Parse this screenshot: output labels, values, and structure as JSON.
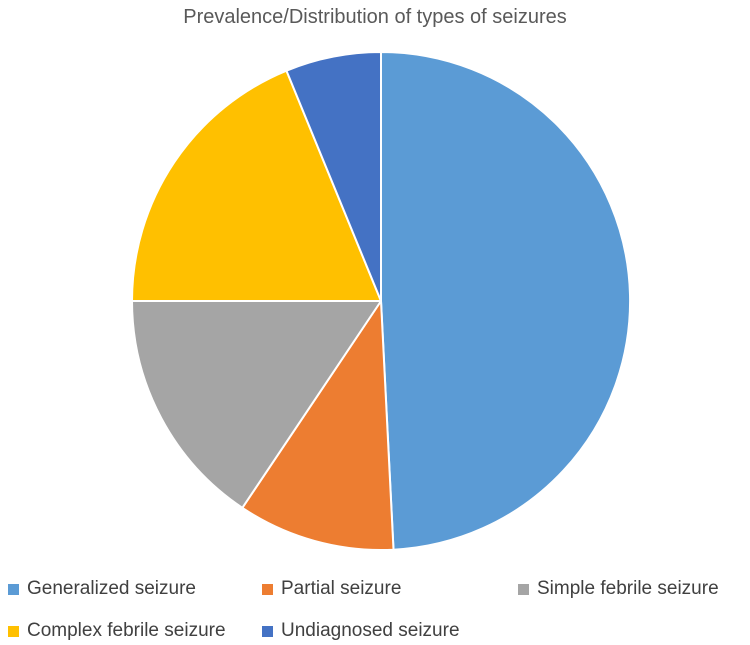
{
  "chart_data": {
    "type": "pie",
    "title": "Prevalence/Distribution of types of seizures",
    "categories": [
      "Generalized seizure",
      "Partial seizure",
      "Simple febrile seizure",
      "Complex febrile seizure",
      "Undiagnosed seizure"
    ],
    "values": [
      49.2,
      10.2,
      15.6,
      18.8,
      6.2
    ],
    "colors": [
      "#5B9BD5",
      "#ED7D31",
      "#A5A5A5",
      "#FFC000",
      "#4472C4"
    ],
    "legend_position": "bottom"
  }
}
